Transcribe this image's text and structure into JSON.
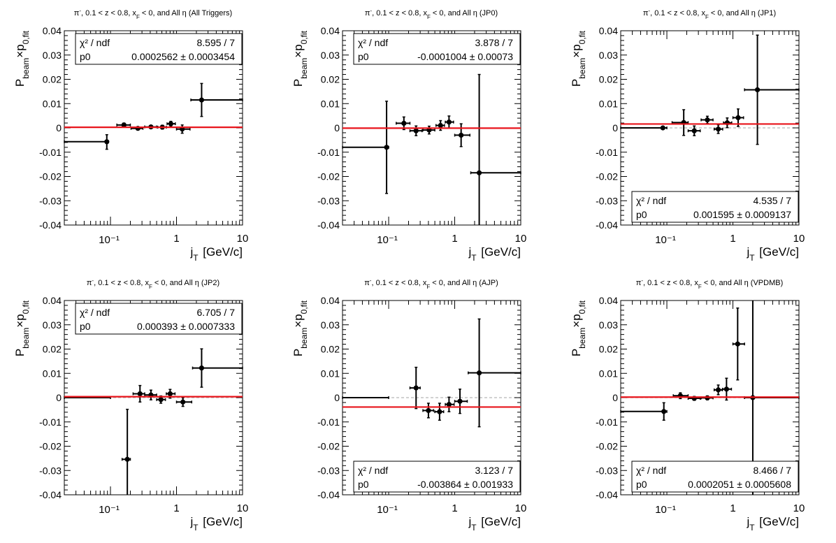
{
  "colors": {
    "points": "#000000",
    "fit_line": "#e8141b",
    "zero_line": "#b8b8b8",
    "frame": "#000000"
  },
  "chart_data": [
    {
      "type": "scatter",
      "title": "π⁻, 0.1 < z < 0.8, x_F < 0, and All η (All Triggers)",
      "title_parts": {
        "pre": "π",
        "sup": "-",
        "mid": ", 0.1 < z < 0.8, x",
        "sub": "F",
        "post": " < 0, and All η (All Triggers)"
      },
      "xlabel": "j_T [GeV/c]",
      "ylabel": "P_beam×p_0,fit",
      "xscale": "log",
      "xlim": [
        0.02,
        10
      ],
      "ylim": [
        -0.04,
        0.04
      ],
      "xticks": [
        "10⁻¹",
        "1",
        "10"
      ],
      "yticks": [
        "0.04",
        "0.03",
        "0.02",
        "0.01",
        "0",
        "-0.01",
        "-0.02",
        "-0.03",
        "-0.04"
      ],
      "points": [
        {
          "x": 0.088,
          "xlo": 0.02,
          "xhi": 0.093,
          "y": -0.0057,
          "ylo": -0.0088,
          "yhi": -0.0028
        },
        {
          "x": 0.16,
          "xlo": 0.125,
          "xhi": 0.2,
          "y": 0.0012,
          "ylo": 0.0004,
          "yhi": 0.002
        },
        {
          "x": 0.26,
          "xlo": 0.205,
          "xhi": 0.31,
          "y": -0.0002,
          "ylo": -0.0008,
          "yhi": 0.0004
        },
        {
          "x": 0.41,
          "xlo": 0.33,
          "xhi": 0.5,
          "y": 0.0004,
          "ylo": -0.0002,
          "yhi": 0.001
        },
        {
          "x": 0.61,
          "xlo": 0.52,
          "xhi": 0.7,
          "y": 0.0003,
          "ylo": -0.0005,
          "yhi": 0.0011
        },
        {
          "x": 0.82,
          "xlo": 0.72,
          "xhi": 0.96,
          "y": 0.0017,
          "ylo": 0.0007,
          "yhi": 0.0027
        },
        {
          "x": 1.22,
          "xlo": 1.0,
          "xhi": 1.6,
          "y": -0.0005,
          "ylo": -0.0022,
          "yhi": 0.0012
        },
        {
          "x": 2.4,
          "xlo": 1.65,
          "xhi": 10,
          "y": 0.0115,
          "ylo": 0.0047,
          "yhi": 0.0183
        }
      ],
      "fit_value": 0.0002562,
      "show_zero_line": false,
      "stats": {
        "position": "top",
        "chi_label": "χ² / ndf",
        "chi_value": "8.595 / 7",
        "p0_label": "p0",
        "p0_value": "0.0002562 ± 0.0003454"
      }
    },
    {
      "type": "scatter",
      "title": "π⁻, 0.1 < z < 0.8, x_F < 0, and All η (JP0)",
      "title_parts": {
        "pre": "π",
        "sup": "-",
        "mid": ", 0.1 < z < 0.8, x",
        "sub": "F",
        "post": " < 0, and All η (JP0)"
      },
      "xlabel": "j_T [GeV/c]",
      "ylabel": "P_beam×p_0,fit",
      "xscale": "log",
      "xlim": [
        0.02,
        10
      ],
      "ylim": [
        -0.04,
        0.04
      ],
      "xticks": [
        "10⁻¹",
        "1",
        "10"
      ],
      "yticks": [
        "0.04",
        "0.03",
        "0.02",
        "0.01",
        "0",
        "-0.01",
        "-0.02",
        "-0.03",
        "-0.04"
      ],
      "points": [
        {
          "x": 0.093,
          "xlo": 0.02,
          "xhi": 0.1,
          "y": -0.008,
          "ylo": -0.027,
          "yhi": 0.011
        },
        {
          "x": 0.17,
          "xlo": 0.13,
          "xhi": 0.21,
          "y": 0.0019,
          "ylo": -0.0007,
          "yhi": 0.0045
        },
        {
          "x": 0.26,
          "xlo": 0.21,
          "xhi": 0.32,
          "y": -0.0012,
          "ylo": -0.0032,
          "yhi": 0.0008
        },
        {
          "x": 0.41,
          "xlo": 0.33,
          "xhi": 0.5,
          "y": -0.0009,
          "ylo": -0.0025,
          "yhi": 0.0007
        },
        {
          "x": 0.61,
          "xlo": 0.52,
          "xhi": 0.7,
          "y": 0.001,
          "ylo": -0.001,
          "yhi": 0.003
        },
        {
          "x": 0.82,
          "xlo": 0.72,
          "xhi": 0.96,
          "y": 0.0024,
          "ylo": -0.0001,
          "yhi": 0.0049
        },
        {
          "x": 1.25,
          "xlo": 1.0,
          "xhi": 1.7,
          "y": -0.003,
          "ylo": -0.0077,
          "yhi": 0.0017
        },
        {
          "x": 2.35,
          "xlo": 1.75,
          "xhi": 10,
          "y": -0.0185,
          "ylo": -0.06,
          "yhi": 0.022
        }
      ],
      "fit_value": -0.0001004,
      "show_zero_line": false,
      "stats": {
        "position": "top",
        "chi_label": "χ² / ndf",
        "chi_value": "3.878 / 7",
        "p0_label": "p0",
        "p0_value": "-0.0001004 ± 0.00073"
      }
    },
    {
      "type": "scatter",
      "title": "π⁻, 0.1 < z < 0.8, x_F < 0, and All η (JP1)",
      "title_parts": {
        "pre": "π",
        "sup": "-",
        "mid": ", 0.1 < z < 0.8, x",
        "sub": "F",
        "post": " < 0, and All η (JP1)"
      },
      "xlabel": "j_T [GeV/c]",
      "ylabel": "P_beam×p_0,fit",
      "xscale": "log",
      "xlim": [
        0.02,
        10
      ],
      "ylim": [
        -0.04,
        0.04
      ],
      "xticks": [
        "10⁻¹",
        "1",
        "10"
      ],
      "yticks": [
        "0.04",
        "0.03",
        "0.02",
        "0.01",
        "0",
        "-0.01",
        "-0.02",
        "-0.03",
        "-0.04"
      ],
      "points": [
        {
          "x": 0.087,
          "xlo": 0.02,
          "xhi": 0.1,
          "y": 0.0,
          "ylo": 0.0,
          "yhi": 0.0
        },
        {
          "x": 0.18,
          "xlo": 0.12,
          "xhi": 0.21,
          "y": 0.0022,
          "ylo": -0.0031,
          "yhi": 0.0075
        },
        {
          "x": 0.26,
          "xlo": 0.21,
          "xhi": 0.32,
          "y": -0.0012,
          "ylo": -0.0032,
          "yhi": 0.0008
        },
        {
          "x": 0.41,
          "xlo": 0.33,
          "xhi": 0.5,
          "y": 0.0033,
          "ylo": 0.0018,
          "yhi": 0.0048
        },
        {
          "x": 0.6,
          "xlo": 0.52,
          "xhi": 0.7,
          "y": -0.0005,
          "ylo": -0.0023,
          "yhi": 0.0013
        },
        {
          "x": 0.82,
          "xlo": 0.72,
          "xhi": 0.96,
          "y": 0.0021,
          "ylo": 0.0001,
          "yhi": 0.0041
        },
        {
          "x": 1.2,
          "xlo": 1.0,
          "xhi": 1.45,
          "y": 0.0042,
          "ylo": 0.0006,
          "yhi": 0.0078
        },
        {
          "x": 2.35,
          "xlo": 1.5,
          "xhi": 10,
          "y": 0.0157,
          "ylo": -0.0068,
          "yhi": 0.0382
        }
      ],
      "fit_value": 0.001595,
      "show_zero_line": true,
      "stats": {
        "position": "bottom",
        "chi_label": "χ² / ndf",
        "chi_value": "4.535 / 7",
        "p0_label": "p0",
        "p0_value": "0.001595 ± 0.0009137"
      }
    },
    {
      "type": "scatter",
      "title": "π⁻, 0.1 < z < 0.8, x_F < 0, and All η (JP2)",
      "title_parts": {
        "pre": "π",
        "sup": "-",
        "mid": ", 0.1 < z < 0.8, x",
        "sub": "F",
        "post": " < 0, and All η (JP2)"
      },
      "xlabel": "j_T [GeV/c]",
      "ylabel": "P_beam×p_0,fit",
      "xscale": "log",
      "xlim": [
        0.02,
        10
      ],
      "ylim": [
        -0.04,
        0.04
      ],
      "xticks": [
        "10⁻¹",
        "1",
        "10"
      ],
      "yticks": [
        "0.04",
        "0.03",
        "0.02",
        "0.01",
        "0",
        "-0.01",
        "-0.02",
        "-0.03",
        "-0.04"
      ],
      "points": [
        {
          "x": 0.07,
          "xlo": 0.02,
          "xhi": 0.1,
          "y": 0.0,
          "ylo": 0.0,
          "yhi": 0.0
        },
        {
          "x": 0.18,
          "xlo": 0.15,
          "xhi": 0.2,
          "y": -0.0254,
          "ylo": -0.046,
          "yhi": -0.0048
        },
        {
          "x": 0.28,
          "xlo": 0.22,
          "xhi": 0.33,
          "y": 0.0016,
          "ylo": -0.0018,
          "yhi": 0.005
        },
        {
          "x": 0.41,
          "xlo": 0.33,
          "xhi": 0.5,
          "y": 0.0011,
          "ylo": -0.0009,
          "yhi": 0.0031
        },
        {
          "x": 0.58,
          "xlo": 0.5,
          "xhi": 0.68,
          "y": -0.0008,
          "ylo": -0.0023,
          "yhi": 0.0007
        },
        {
          "x": 0.8,
          "xlo": 0.7,
          "xhi": 0.95,
          "y": 0.0016,
          "ylo": -0.0002,
          "yhi": 0.0034
        },
        {
          "x": 1.25,
          "xlo": 1.0,
          "xhi": 1.7,
          "y": -0.0018,
          "ylo": -0.0036,
          "yhi": 0.0
        },
        {
          "x": 2.4,
          "xlo": 1.75,
          "xhi": 10,
          "y": 0.0122,
          "ylo": 0.0043,
          "yhi": 0.0201
        }
      ],
      "fit_value": 0.000393,
      "show_zero_line": true,
      "stats": {
        "position": "top",
        "chi_label": "χ² / ndf",
        "chi_value": "6.705 / 7",
        "p0_label": "p0",
        "p0_value": "0.000393 ± 0.0007333"
      }
    },
    {
      "type": "scatter",
      "title": "π⁻, 0.1 < z < 0.8, x_F < 0, and All η (AJP)",
      "title_parts": {
        "pre": "π",
        "sup": "-",
        "mid": ", 0.1 < z < 0.8, x",
        "sub": "F",
        "post": " < 0, and All η (AJP)"
      },
      "xlabel": "j_T [GeV/c]",
      "ylabel": "P_beam×p_0,fit",
      "xscale": "log",
      "xlim": [
        0.02,
        10
      ],
      "ylim": [
        -0.04,
        0.04
      ],
      "xticks": [
        "10⁻¹",
        "1",
        "10"
      ],
      "yticks": [
        "0.04",
        "0.03",
        "0.02",
        "0.01",
        "0",
        "-0.01",
        "-0.02",
        "-0.03",
        "-0.04"
      ],
      "points": [
        {
          "x": 0.07,
          "xlo": 0.02,
          "xhi": 0.1,
          "y": 0.0,
          "ylo": 0.0,
          "yhi": 0.0
        },
        {
          "x": 0.26,
          "xlo": 0.21,
          "xhi": 0.3,
          "y": 0.004,
          "ylo": -0.0045,
          "yhi": 0.0125
        },
        {
          "x": 0.4,
          "xlo": 0.33,
          "xhi": 0.48,
          "y": -0.0053,
          "ylo": -0.0083,
          "yhi": -0.0023
        },
        {
          "x": 0.59,
          "xlo": 0.5,
          "xhi": 0.68,
          "y": -0.0058,
          "ylo": -0.0093,
          "yhi": -0.0023
        },
        {
          "x": 0.82,
          "xlo": 0.72,
          "xhi": 0.98,
          "y": -0.0028,
          "ylo": -0.0058,
          "yhi": 0.0002
        },
        {
          "x": 1.2,
          "xlo": 1.0,
          "xhi": 1.55,
          "y": -0.0015,
          "ylo": -0.0065,
          "yhi": 0.0035
        },
        {
          "x": 2.35,
          "xlo": 1.6,
          "xhi": 10,
          "y": 0.0102,
          "ylo": -0.012,
          "yhi": 0.0324
        }
      ],
      "fit_value": -0.003864,
      "show_zero_line": true,
      "stats": {
        "position": "bottom",
        "chi_label": "χ² / ndf",
        "chi_value": "3.123 / 7",
        "p0_label": "p0",
        "p0_value": "-0.003864 ± 0.001933"
      }
    },
    {
      "type": "scatter",
      "title": "π⁻, 0.1 < z < 0.8, x_F < 0, and All η (VPDMB)",
      "title_parts": {
        "pre": "π",
        "sup": "-",
        "mid": ", 0.1 < z < 0.8, x",
        "sub": "F",
        "post": " < 0, and All η (VPDMB)"
      },
      "xlabel": "j_T [GeV/c]",
      "ylabel": "P_beam×p_0,fit",
      "xscale": "log",
      "xlim": [
        0.02,
        10
      ],
      "ylim": [
        -0.04,
        0.04
      ],
      "xticks": [
        "10⁻¹",
        "1",
        "10"
      ],
      "yticks": [
        "0.04",
        "0.03",
        "0.02",
        "0.01",
        "0",
        "-0.01",
        "-0.02",
        "-0.03",
        "-0.04"
      ],
      "points": [
        {
          "x": 0.09,
          "xlo": 0.02,
          "xhi": 0.1,
          "y": -0.0057,
          "ylo": -0.0093,
          "yhi": -0.0021
        },
        {
          "x": 0.16,
          "xlo": 0.125,
          "xhi": 0.21,
          "y": 0.0008,
          "ylo": -0.0004,
          "yhi": 0.002
        },
        {
          "x": 0.26,
          "xlo": 0.21,
          "xhi": 0.32,
          "y": -0.0003,
          "ylo": -0.0011,
          "yhi": 0.0005
        },
        {
          "x": 0.41,
          "xlo": 0.33,
          "xhi": 0.5,
          "y": -0.0001,
          "ylo": -0.0009,
          "yhi": 0.0007
        },
        {
          "x": 0.6,
          "xlo": 0.52,
          "xhi": 0.69,
          "y": 0.0032,
          "ylo": 0.0012,
          "yhi": 0.0052
        },
        {
          "x": 0.8,
          "xlo": 0.7,
          "xhi": 0.95,
          "y": 0.0035,
          "ylo": -0.001,
          "yhi": 0.008
        },
        {
          "x": 1.18,
          "xlo": 1.0,
          "xhi": 1.5,
          "y": 0.0221,
          "ylo": 0.0073,
          "yhi": 0.0369
        },
        {
          "x": 2.0,
          "xlo": 1.5,
          "xhi": 10,
          "y": 0.0,
          "ylo": -0.06,
          "yhi": 0.06
        }
      ],
      "fit_value": 0.0002051,
      "show_zero_line": true,
      "stats": {
        "position": "bottom",
        "chi_label": "χ² / ndf",
        "chi_value": "8.466 / 7",
        "p0_label": "p0",
        "p0_value": "0.0002051 ± 0.0005608"
      }
    }
  ]
}
